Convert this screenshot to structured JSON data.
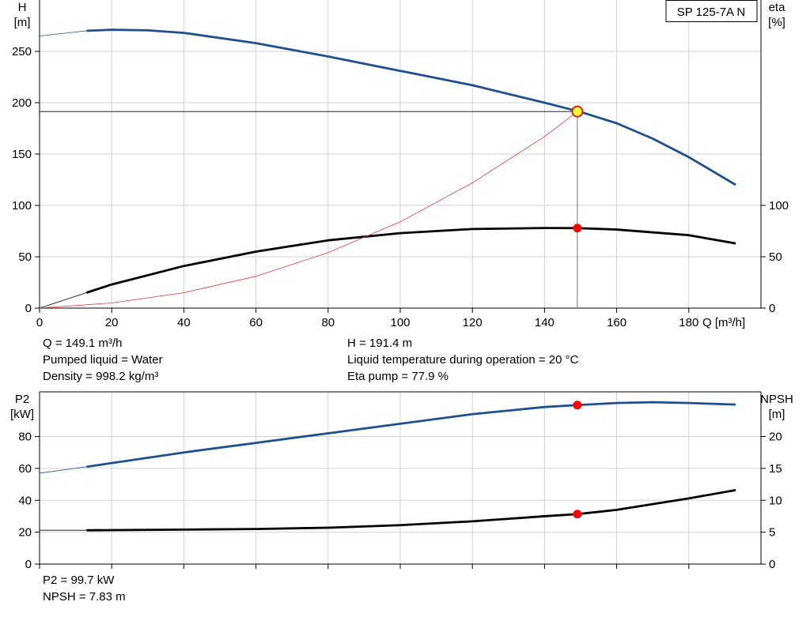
{
  "chart_data": [
    {
      "type": "line",
      "title": "SP 125-7A N",
      "xlabel": "Q [m³/h]",
      "xlim": [
        0,
        200
      ],
      "x_ticks": [
        0,
        20,
        40,
        60,
        80,
        100,
        120,
        140,
        160,
        180
      ],
      "y_left": {
        "label_line1": "H",
        "label_line2": "[m]",
        "lim": [
          0,
          300
        ],
        "ticks": [
          0,
          50,
          100,
          150,
          200,
          250
        ]
      },
      "y_right": {
        "label_line1": "eta",
        "label_line2": "[%]",
        "lim": [
          0,
          300
        ],
        "ticks": [
          0,
          50,
          100
        ]
      },
      "grid": true,
      "series": [
        {
          "axis": "left",
          "color": "#1f4e8c",
          "x": [
            0,
            13,
            20,
            30,
            40,
            60,
            80,
            100,
            120,
            140,
            150,
            160,
            170,
            180,
            193
          ],
          "y": [
            265,
            270,
            271,
            270.5,
            268,
            258,
            245,
            231,
            217,
            200,
            191,
            180,
            165,
            147,
            120
          ]
        },
        {
          "axis": "right",
          "color": "#000000",
          "x": [
            0,
            13,
            20,
            40,
            60,
            80,
            100,
            120,
            140,
            149.1,
            160,
            180,
            193
          ],
          "y": [
            0,
            15,
            23,
            41,
            55,
            66,
            73,
            77,
            78,
            77.9,
            76.5,
            71,
            63
          ]
        },
        {
          "axis": "left",
          "color": "#e23a3a",
          "x": [
            0,
            20,
            40,
            60,
            80,
            100,
            120,
            140,
            149.1
          ],
          "y": [
            0,
            5,
            15,
            31,
            54,
            84,
            122,
            167,
            191.4
          ]
        }
      ],
      "operating_point": {
        "Q": 149.1,
        "H": 191.4,
        "eta": 77.9
      }
    },
    {
      "type": "line",
      "xlim": [
        0,
        200
      ],
      "y_left": {
        "label_line1": "P2",
        "label_line2": "[kW]",
        "lim": [
          0,
          108
        ],
        "ticks": [
          0,
          20,
          40,
          60,
          80
        ]
      },
      "y_right": {
        "label_line1": "NPSH",
        "label_line2": "[m]",
        "lim": [
          0,
          27
        ],
        "ticks": [
          0,
          5,
          10,
          15,
          20
        ]
      },
      "grid": true,
      "series": [
        {
          "axis": "left",
          "color": "#1f4e8c",
          "x": [
            0,
            13,
            40,
            60,
            80,
            100,
            120,
            140,
            149.1,
            160,
            170,
            180,
            193
          ],
          "y": [
            57,
            61,
            70,
            76,
            82,
            88,
            94,
            98.5,
            99.7,
            101,
            101.5,
            101,
            100
          ]
        },
        {
          "axis": "right",
          "color": "#000000",
          "x": [
            0,
            13,
            40,
            60,
            80,
            100,
            120,
            140,
            149.1,
            160,
            180,
            193
          ],
          "y": [
            5.3,
            5.3,
            5.4,
            5.5,
            5.7,
            6.1,
            6.7,
            7.5,
            7.83,
            8.5,
            10.3,
            11.6
          ]
        }
      ],
      "operating_point": {
        "Q": 149.1,
        "P2": 99.7,
        "NPSH": 7.83
      }
    }
  ],
  "info_top_left": [
    "Q = 149.1 m³/h",
    "Pumped liquid = Water",
    "Density = 998.2 kg/m³"
  ],
  "info_top_right": [
    "H = 191.4 m",
    "Liquid temperature during operation = 20 °C",
    "Eta pump = 77.9 %"
  ],
  "info_bottom_left": [
    "P2 = 99.7 kW",
    "NPSH = 7.83 m"
  ],
  "colors": {
    "head": "#1f4e8c",
    "eta": "#000000",
    "system": "#e23a3a",
    "marker": "#ff0000",
    "duty_fill": "#ffff33",
    "grid": "#d0d0d0"
  }
}
